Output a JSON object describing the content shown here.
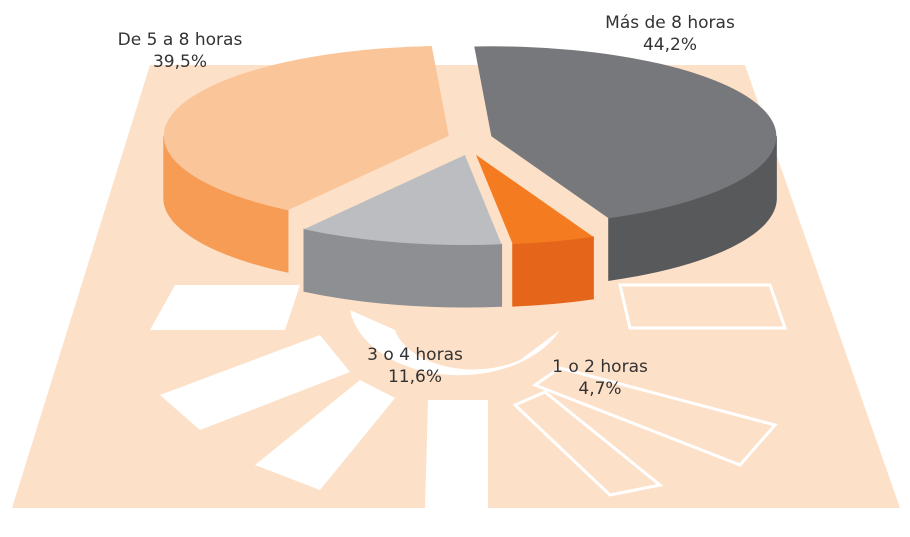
{
  "chart_data": {
    "type": "pie",
    "categories": [
      "Más de 8 horas",
      "1 o 2 horas",
      "3 o 4 horas",
      "De 5 a 8 horas"
    ],
    "values": [
      44.2,
      4.7,
      11.6,
      39.5
    ],
    "value_labels": [
      "44,2%",
      "4,7%",
      "11,6%",
      "39,5%"
    ],
    "colors": [
      "#77787b",
      "#f47b20",
      "#bcbdc0",
      "#fbc59a"
    ],
    "side_colors": [
      "#58595b",
      "#e5661a",
      "#8e8f92",
      "#f69c55"
    ]
  }
}
